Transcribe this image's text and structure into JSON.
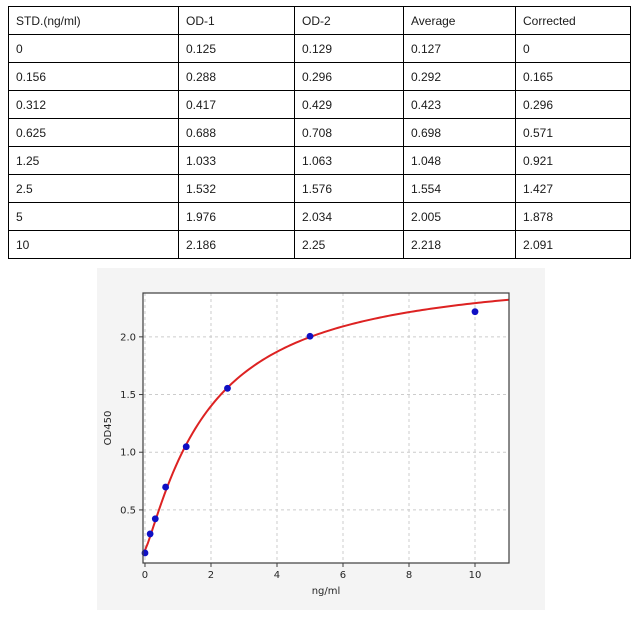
{
  "table": {
    "columns": [
      "STD.(ng/ml)",
      "OD-1",
      "OD-2",
      "Average",
      "Corrected"
    ],
    "rows": [
      [
        "0",
        "0.125",
        "0.129",
        "0.127",
        "0"
      ],
      [
        "0.156",
        "0.288",
        "0.296",
        "0.292",
        "0.165"
      ],
      [
        "0.312",
        "0.417",
        "0.429",
        "0.423",
        "0.296"
      ],
      [
        "0.625",
        "0.688",
        "0.708",
        "0.698",
        "0.571"
      ],
      [
        "1.25",
        "1.033",
        "1.063",
        "1.048",
        "0.921"
      ],
      [
        "2.5",
        "1.532",
        "1.576",
        "1.554",
        "1.427"
      ],
      [
        "5",
        "1.976",
        "2.034",
        "2.005",
        "1.878"
      ],
      [
        "10",
        "2.186",
        "2.25",
        "2.218",
        "2.091"
      ]
    ]
  },
  "chart_data": {
    "type": "scatter",
    "title": "",
    "xlabel": "ng/ml",
    "ylabel": "OD450",
    "x": [
      0,
      0.156,
      0.312,
      0.625,
      1.25,
      2.5,
      5,
      10
    ],
    "y": [
      0.127,
      0.292,
      0.423,
      0.698,
      1.048,
      1.554,
      2.005,
      2.218
    ],
    "xlim": [
      -0.06,
      11.03
    ],
    "ylim": [
      0.04,
      2.38
    ],
    "xticks": [
      0,
      2,
      4,
      6,
      8,
      10
    ],
    "yticks": [
      0.5,
      1.0,
      1.5,
      2.0
    ],
    "xtick_labels": [
      "0",
      "2",
      "4",
      "6",
      "8",
      "10"
    ],
    "ytick_labels": [
      "0.5",
      "1.0",
      "1.5",
      "2.0"
    ],
    "grid": true,
    "legend": "none",
    "fit_curve": {
      "model": "4PL",
      "a": 0.15,
      "b": 1.18,
      "c": 1.932,
      "d": 2.6
    },
    "colors": {
      "point": "#0f0fc4",
      "curve": "#dd2222",
      "grid": "#cccccc",
      "spine": "#3d3d3d",
      "figure_bg": "#f4f4f4",
      "plot_bg": "#ffffff",
      "tick_text": "#262626"
    }
  }
}
